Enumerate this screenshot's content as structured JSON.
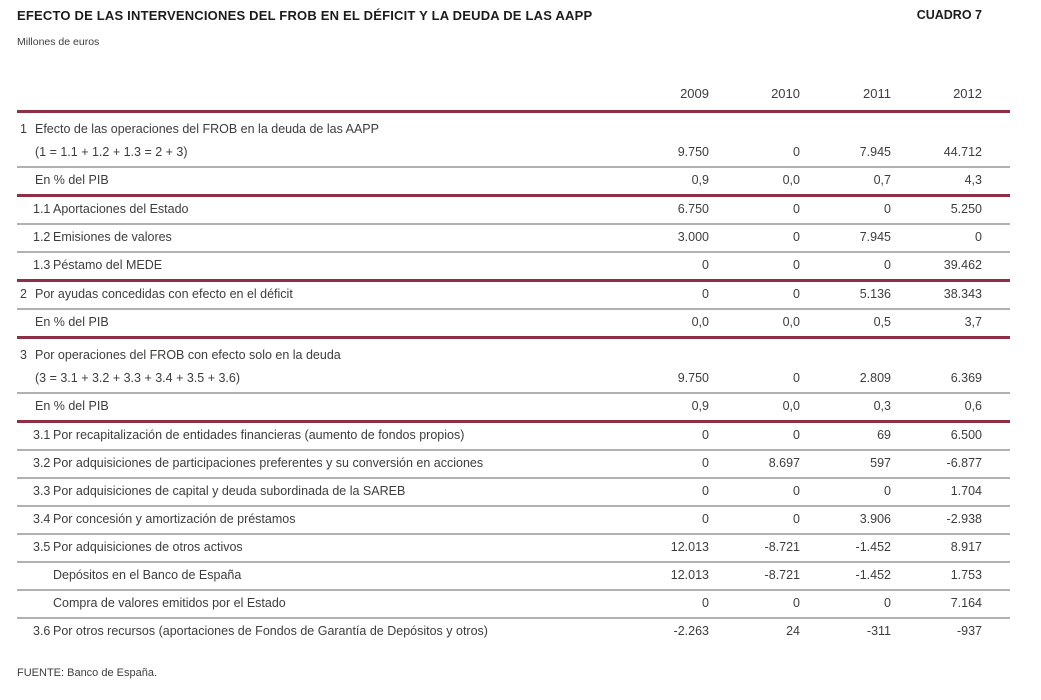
{
  "header": {
    "title": "EFECTO DE LAS INTERVENCIONES DEL FROB EN EL DÉFICIT Y LA DEUDA DE LAS AAPP",
    "cuadro": "CUADRO 7",
    "subtitle": "Millones de euros"
  },
  "colors": {
    "section_rule": "#8e2f44",
    "row_rule": "#b1b1b1",
    "text": "#3d3d3d"
  },
  "chart_data": {
    "type": "table",
    "title": "EFECTO DE LAS INTERVENCIONES DEL FROB EN EL DÉFICIT Y LA DEUDA DE LAS AAPP",
    "units": "Millones de euros",
    "columns": [
      "2009",
      "2010",
      "2011",
      "2012"
    ]
  },
  "table": {
    "columns": [
      "2009",
      "2010",
      "2011",
      "2012"
    ],
    "rows": [
      {
        "num": "1",
        "label": "Efecto de las operaciones del FROB en la deuda de las AAPP",
        "label2": "(1 = 1.1 + 1.2 + 1.3 = 2 + 3)",
        "values": [
          "9.750",
          "0",
          "7.945",
          "44.712"
        ],
        "type": "main",
        "border": "gray"
      },
      {
        "num": "",
        "label": "En % del PIB",
        "values": [
          "0,9",
          "0,0",
          "0,7",
          "4,3"
        ],
        "type": "pct",
        "border": "maroon"
      },
      {
        "num": "1.1",
        "label": "Aportaciones del Estado",
        "values": [
          "6.750",
          "0",
          "0",
          "5.250"
        ],
        "type": "sub",
        "border": "gray"
      },
      {
        "num": "1.2",
        "label": "Emisiones de valores",
        "values": [
          "3.000",
          "0",
          "7.945",
          "0"
        ],
        "type": "sub",
        "border": "gray"
      },
      {
        "num": "1.3",
        "label": "Péstamo del MEDE",
        "values": [
          "0",
          "0",
          "0",
          "39.462"
        ],
        "type": "sub",
        "border": "maroon"
      },
      {
        "num": "2",
        "label": "Por ayudas concedidas con efecto en el déficit",
        "values": [
          "0",
          "0",
          "5.136",
          "38.343"
        ],
        "type": "main",
        "border": "gray"
      },
      {
        "num": "",
        "label": "En % del PIB",
        "values": [
          "0,0",
          "0,0",
          "0,5",
          "3,7"
        ],
        "type": "pct",
        "border": "maroon"
      },
      {
        "num": "3",
        "label": "Por operaciones del FROB con efecto solo en la deuda",
        "label2": "(3 = 3.1 + 3.2 + 3.3 + 3.4 + 3.5 + 3.6)",
        "values": [
          "9.750",
          "0",
          "2.809",
          "6.369"
        ],
        "type": "main",
        "border": "gray"
      },
      {
        "num": "",
        "label": "En % del PIB",
        "values": [
          "0,9",
          "0,0",
          "0,3",
          "0,6"
        ],
        "type": "pct",
        "border": "maroon"
      },
      {
        "num": "3.1",
        "label": "Por recapitalización de entidades financieras (aumento de fondos propios)",
        "values": [
          "0",
          "0",
          "69",
          "6.500"
        ],
        "type": "sub",
        "border": "gray"
      },
      {
        "num": "3.2",
        "label": "Por adquisiciones de participaciones preferentes y su conversión en acciones",
        "values": [
          "0",
          "8.697",
          "597",
          "-6.877"
        ],
        "type": "sub",
        "border": "gray"
      },
      {
        "num": "3.3",
        "label": "Por adquisiciones de capital y deuda subordinada de la SAREB",
        "values": [
          "0",
          "0",
          "0",
          "1.704"
        ],
        "type": "sub",
        "border": "gray"
      },
      {
        "num": "3.4",
        "label": "Por concesión y amortización de préstamos",
        "values": [
          "0",
          "0",
          "3.906",
          "-2.938"
        ],
        "type": "sub",
        "border": "gray"
      },
      {
        "num": "3.5",
        "label": "Por adquisiciones de otros activos",
        "values": [
          "12.013",
          "-8.721",
          "-1.452",
          "8.917"
        ],
        "type": "sub",
        "border": "gray"
      },
      {
        "num": "",
        "label": "Depósitos en el Banco de España",
        "values": [
          "12.013",
          "-8.721",
          "-1.452",
          "1.753"
        ],
        "type": "subsub",
        "border": "gray"
      },
      {
        "num": "",
        "label": "Compra de valores emitidos por el Estado",
        "values": [
          "0",
          "0",
          "0",
          "7.164"
        ],
        "type": "subsub",
        "border": "gray"
      },
      {
        "num": "3.6",
        "label": "Por otros recursos (aportaciones de Fondos de Garantía de Depósitos y otros)",
        "values": [
          "-2.263",
          "24",
          "-311",
          "-937"
        ],
        "type": "sub",
        "border": "none"
      }
    ]
  },
  "footer": {
    "source": "FUENTE: Banco de España."
  }
}
